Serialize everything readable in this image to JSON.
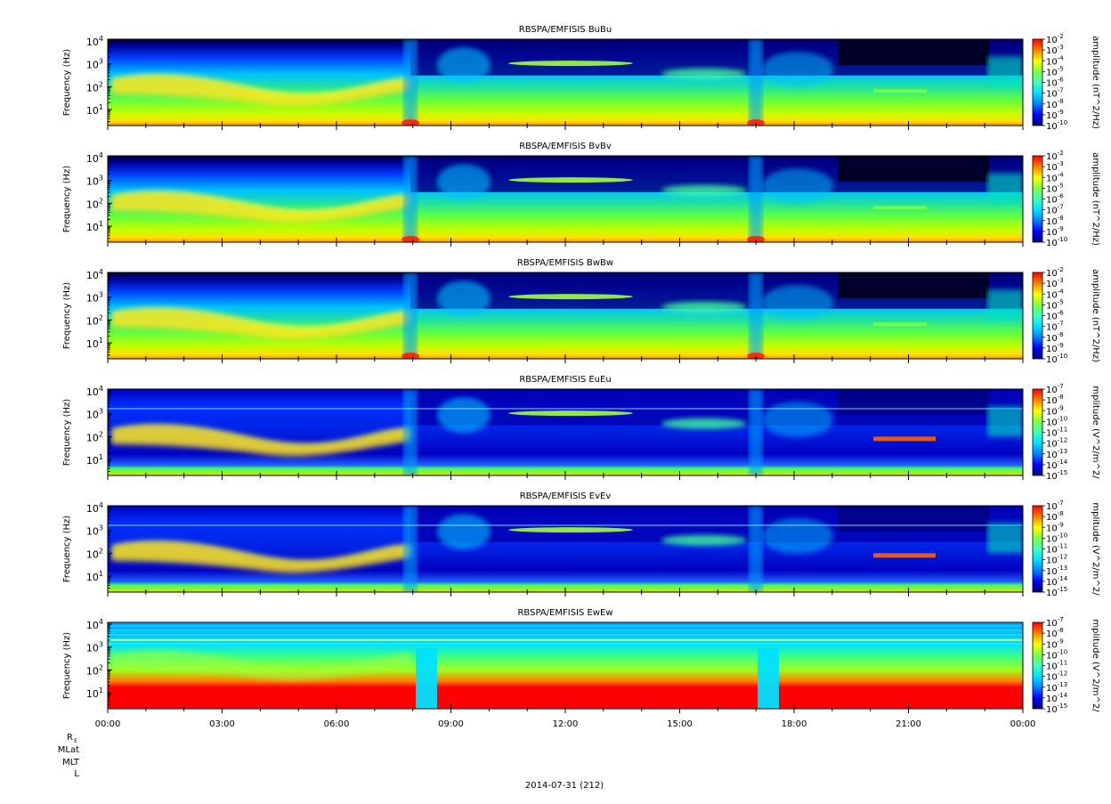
{
  "page_title": "",
  "footer": {
    "date_label": "2014-07-31 (212)",
    "ephemeris_labels": [
      "R",
      "E",
      "MLat",
      "MLT",
      "L"
    ]
  },
  "chart_data": [
    {
      "type": "heatmap",
      "title": "RBSPA/EMFISIS  BuBu",
      "ylabel": "Frequency (Hz)",
      "yscale": "log",
      "ylim_hz": [
        2,
        12000
      ],
      "yticks": [
        {
          "mant": "10",
          "exp": "1"
        },
        {
          "mant": "10",
          "exp": "2"
        },
        {
          "mant": "10",
          "exp": "3"
        },
        {
          "mant": "10",
          "exp": "4"
        }
      ],
      "xlim": [
        "00:00",
        "24:00"
      ],
      "colorbar": {
        "label": "amplitude (nT^2/Hz)",
        "scale": "log",
        "range_exp": [
          -10,
          -2
        ],
        "ticks": [
          {
            "mant": "10",
            "exp": "-2"
          },
          {
            "mant": "10",
            "exp": "-3"
          },
          {
            "mant": "10",
            "exp": "-4"
          },
          {
            "mant": "10",
            "exp": "-5"
          },
          {
            "mant": "10",
            "exp": "-6"
          },
          {
            "mant": "10",
            "exp": "-7"
          },
          {
            "mant": "10",
            "exp": "-8"
          },
          {
            "mant": "10",
            "exp": "-9"
          },
          {
            "mant": "10",
            "exp": "-10"
          }
        ]
      }
    },
    {
      "type": "heatmap",
      "title": "RBSPA/EMFISIS  BvBv",
      "ylabel": "Frequency (Hz)",
      "yscale": "log",
      "ylim_hz": [
        2,
        12000
      ],
      "yticks": [
        {
          "mant": "10",
          "exp": "1"
        },
        {
          "mant": "10",
          "exp": "2"
        },
        {
          "mant": "10",
          "exp": "3"
        },
        {
          "mant": "10",
          "exp": "4"
        }
      ],
      "xlim": [
        "00:00",
        "24:00"
      ],
      "colorbar": {
        "label": "amplitude (nT^2/Hz)",
        "scale": "log",
        "range_exp": [
          -10,
          -2
        ],
        "ticks": [
          {
            "mant": "10",
            "exp": "-2"
          },
          {
            "mant": "10",
            "exp": "-3"
          },
          {
            "mant": "10",
            "exp": "-4"
          },
          {
            "mant": "10",
            "exp": "-5"
          },
          {
            "mant": "10",
            "exp": "-6"
          },
          {
            "mant": "10",
            "exp": "-7"
          },
          {
            "mant": "10",
            "exp": "-8"
          },
          {
            "mant": "10",
            "exp": "-9"
          },
          {
            "mant": "10",
            "exp": "-10"
          }
        ]
      }
    },
    {
      "type": "heatmap",
      "title": "RBSPA/EMFISIS  BwBw",
      "ylabel": "Frequency (Hz)",
      "yscale": "log",
      "ylim_hz": [
        2,
        12000
      ],
      "yticks": [
        {
          "mant": "10",
          "exp": "1"
        },
        {
          "mant": "10",
          "exp": "2"
        },
        {
          "mant": "10",
          "exp": "3"
        },
        {
          "mant": "10",
          "exp": "4"
        }
      ],
      "xlim": [
        "00:00",
        "24:00"
      ],
      "colorbar": {
        "label": "amplitude (nT^2/Hz)",
        "scale": "log",
        "range_exp": [
          -10,
          -2
        ],
        "ticks": [
          {
            "mant": "10",
            "exp": "-2"
          },
          {
            "mant": "10",
            "exp": "-3"
          },
          {
            "mant": "10",
            "exp": "-4"
          },
          {
            "mant": "10",
            "exp": "-5"
          },
          {
            "mant": "10",
            "exp": "-6"
          },
          {
            "mant": "10",
            "exp": "-7"
          },
          {
            "mant": "10",
            "exp": "-8"
          },
          {
            "mant": "10",
            "exp": "-9"
          },
          {
            "mant": "10",
            "exp": "-10"
          }
        ]
      }
    },
    {
      "type": "heatmap",
      "title": "RBSPA/EMFISIS  EuEu",
      "ylabel": "Frequency (Hz)",
      "yscale": "log",
      "ylim_hz": [
        2,
        12000
      ],
      "yticks": [
        {
          "mant": "10",
          "exp": "1"
        },
        {
          "mant": "10",
          "exp": "2"
        },
        {
          "mant": "10",
          "exp": "3"
        },
        {
          "mant": "10",
          "exp": "4"
        }
      ],
      "xlim": [
        "00:00",
        "24:00"
      ],
      "colorbar": {
        "label": "mplitude (V^2/m^2/",
        "scale": "log",
        "range_exp": [
          -15,
          -7
        ],
        "ticks": [
          {
            "mant": "10",
            "exp": "-7"
          },
          {
            "mant": "10",
            "exp": "-8"
          },
          {
            "mant": "10",
            "exp": "-9"
          },
          {
            "mant": "10",
            "exp": "-10"
          },
          {
            "mant": "10",
            "exp": "-11"
          },
          {
            "mant": "10",
            "exp": "-12"
          },
          {
            "mant": "10",
            "exp": "-13"
          },
          {
            "mant": "10",
            "exp": "-14"
          },
          {
            "mant": "10",
            "exp": "-15"
          }
        ]
      }
    },
    {
      "type": "heatmap",
      "title": "RBSPA/EMFISIS  EvEv",
      "ylabel": "Frequency (Hz)",
      "yscale": "log",
      "ylim_hz": [
        2,
        12000
      ],
      "yticks": [
        {
          "mant": "10",
          "exp": "1"
        },
        {
          "mant": "10",
          "exp": "2"
        },
        {
          "mant": "10",
          "exp": "3"
        },
        {
          "mant": "10",
          "exp": "4"
        }
      ],
      "xlim": [
        "00:00",
        "24:00"
      ],
      "colorbar": {
        "label": "mplitude (V^2/m^2/",
        "scale": "log",
        "range_exp": [
          -15,
          -7
        ],
        "ticks": [
          {
            "mant": "10",
            "exp": "-7"
          },
          {
            "mant": "10",
            "exp": "-8"
          },
          {
            "mant": "10",
            "exp": "-9"
          },
          {
            "mant": "10",
            "exp": "-10"
          },
          {
            "mant": "10",
            "exp": "-11"
          },
          {
            "mant": "10",
            "exp": "-12"
          },
          {
            "mant": "10",
            "exp": "-13"
          },
          {
            "mant": "10",
            "exp": "-14"
          },
          {
            "mant": "10",
            "exp": "-15"
          }
        ]
      }
    },
    {
      "type": "heatmap",
      "title": "RBSPA/EMFISIS  EwEw",
      "ylabel": "Frequency (Hz)",
      "yscale": "log",
      "ylim_hz": [
        2,
        12000
      ],
      "yticks": [
        {
          "mant": "10",
          "exp": "1"
        },
        {
          "mant": "10",
          "exp": "2"
        },
        {
          "mant": "10",
          "exp": "3"
        },
        {
          "mant": "10",
          "exp": "4"
        }
      ],
      "xlim": [
        "00:00",
        "24:00"
      ],
      "colorbar": {
        "label": "mplitude (V^2/m^2/",
        "scale": "log",
        "range_exp": [
          -15,
          -7
        ],
        "ticks": [
          {
            "mant": "10",
            "exp": "-7"
          },
          {
            "mant": "10",
            "exp": "-8"
          },
          {
            "mant": "10",
            "exp": "-9"
          },
          {
            "mant": "10",
            "exp": "-10"
          },
          {
            "mant": "10",
            "exp": "-11"
          },
          {
            "mant": "10",
            "exp": "-12"
          },
          {
            "mant": "10",
            "exp": "-13"
          },
          {
            "mant": "10",
            "exp": "-14"
          },
          {
            "mant": "10",
            "exp": "-15"
          }
        ]
      }
    }
  ],
  "x_tick_labels": [
    "00:00",
    "03:00",
    "06:00",
    "09:00",
    "12:00",
    "15:00",
    "18:00",
    "21:00",
    "00:00"
  ],
  "colormap": [
    "#000080",
    "#0000ff",
    "#0080ff",
    "#00e0ff",
    "#40ffc0",
    "#80ff40",
    "#ffff00",
    "#ff8000",
    "#ff0000"
  ],
  "background_color": "#ffffff",
  "axis_color": "#000000"
}
